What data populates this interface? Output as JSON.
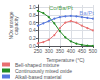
{
  "chart_data": {
    "type": "line",
    "xlabel": "Temperature (°C)",
    "ylabel": "NOx storage\ncapacity",
    "xlim": [
      250,
      500
    ],
    "ylim": [
      0,
      1.05
    ],
    "xticks": [
      250,
      300,
      350,
      400,
      450,
      500
    ],
    "yticks": [
      {
        "value": 0,
        "label": "0.0"
      },
      0.2,
      0.4,
      0.6,
      0.8,
      {
        "value": 1,
        "label": "1.0"
      }
    ],
    "x": [
      250,
      275,
      300,
      325,
      350,
      375,
      400,
      425,
      450,
      475,
      500
    ],
    "series": [
      {
        "name": "Bell-shaped mixture",
        "color": "#e87070",
        "marker": "circle",
        "values": [
          0.07,
          0.1,
          0.16,
          0.28,
          0.46,
          0.6,
          0.64,
          0.6,
          0.52,
          0.46,
          0.4
        ]
      },
      {
        "name": "Continuously mixed oxide",
        "color": "#228B22",
        "marker": "circle",
        "values": [
          0.9,
          0.84,
          0.74,
          0.58,
          0.38,
          0.22,
          0.12,
          0.06,
          0.03,
          0.01,
          0.005
        ]
      },
      {
        "name": "Alkali-based material",
        "color": "#5577dd",
        "marker": "circle",
        "values": [
          0.52,
          0.58,
          0.64,
          0.7,
          0.74,
          0.76,
          0.77,
          0.76,
          0.74,
          0.72,
          0.7
        ]
      }
    ],
    "annotations": [
      {
        "text": "Co/Ba/Pt",
        "x": 355,
        "y": 0.97,
        "color": "#228B22"
      },
      {
        "text": "Ba/Pt",
        "x": 472,
        "y": 0.84,
        "color": "#5577dd"
      }
    ],
    "legend": "bottom",
    "grid": true
  }
}
